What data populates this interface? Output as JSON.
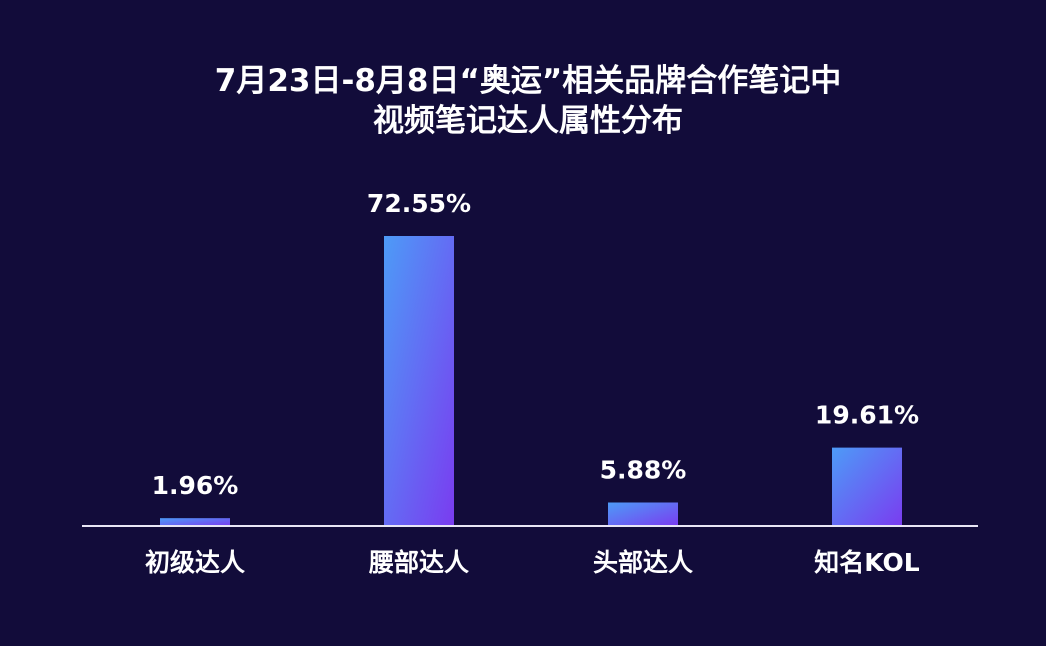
{
  "chart_data": {
    "type": "bar",
    "title_lines": [
      "7月23日-8月8日“奥运”相关品牌合作笔记中",
      "视频笔记达人属性分布"
    ],
    "categories": [
      "初级达人",
      "腰部达人",
      "头部达人",
      "知名KOL"
    ],
    "values": [
      1.96,
      72.55,
      5.88,
      19.61
    ],
    "value_labels": [
      "1.96%",
      "72.55%",
      "5.88%",
      "19.61%"
    ],
    "xlabel": "",
    "ylabel": "",
    "ylim": [
      0,
      75
    ],
    "grid": false,
    "legend": "none"
  },
  "colors": {
    "background": "#120c3a",
    "bar_top": "#4d9bf7",
    "bar_bottom": "#7a3cf0",
    "axis": "#e8e6f5",
    "text": "#ffffff"
  }
}
